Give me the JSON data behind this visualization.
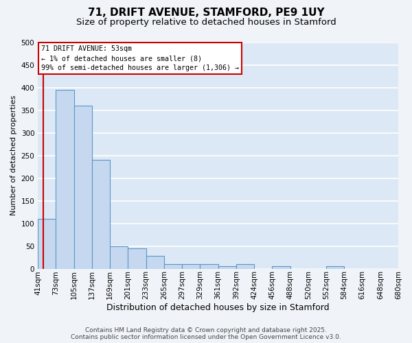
{
  "title": "71, DRIFT AVENUE, STAMFORD, PE9 1UY",
  "subtitle": "Size of property relative to detached houses in Stamford",
  "xlabel": "Distribution of detached houses by size in Stamford",
  "ylabel": "Number of detached properties",
  "bar_values": [
    110,
    395,
    360,
    240,
    50,
    45,
    28,
    10,
    10,
    10,
    5,
    10,
    0,
    5,
    0,
    0,
    5,
    0,
    0,
    0
  ],
  "x_labels": [
    "41sqm",
    "73sqm",
    "105sqm",
    "137sqm",
    "169sqm",
    "201sqm",
    "233sqm",
    "265sqm",
    "297sqm",
    "329sqm",
    "361sqm",
    "392sqm",
    "424sqm",
    "456sqm",
    "488sqm",
    "520sqm",
    "552sqm",
    "584sqm",
    "616sqm",
    "648sqm",
    "680sqm"
  ],
  "bar_color": "#c5d8ef",
  "bar_edge_color": "#5a96c8",
  "bg_color": "#dce8f5",
  "grid_color": "#ffffff",
  "annotation_text": "71 DRIFT AVENUE: 53sqm\n← 1% of detached houses are smaller (8)\n99% of semi-detached houses are larger (1,306) →",
  "annotation_box_color": "#ffffff",
  "annotation_box_edge": "#cc0000",
  "vline_color": "#cc0000",
  "ylim": [
    0,
    500
  ],
  "yticks": [
    0,
    50,
    100,
    150,
    200,
    250,
    300,
    350,
    400,
    450,
    500
  ],
  "footer_text": "Contains HM Land Registry data © Crown copyright and database right 2025.\nContains public sector information licensed under the Open Government Licence v3.0.",
  "title_fontsize": 11,
  "subtitle_fontsize": 9.5,
  "xlabel_fontsize": 9,
  "ylabel_fontsize": 8,
  "tick_fontsize": 7.5,
  "footer_fontsize": 6.5,
  "fig_bg": "#f0f4f8"
}
